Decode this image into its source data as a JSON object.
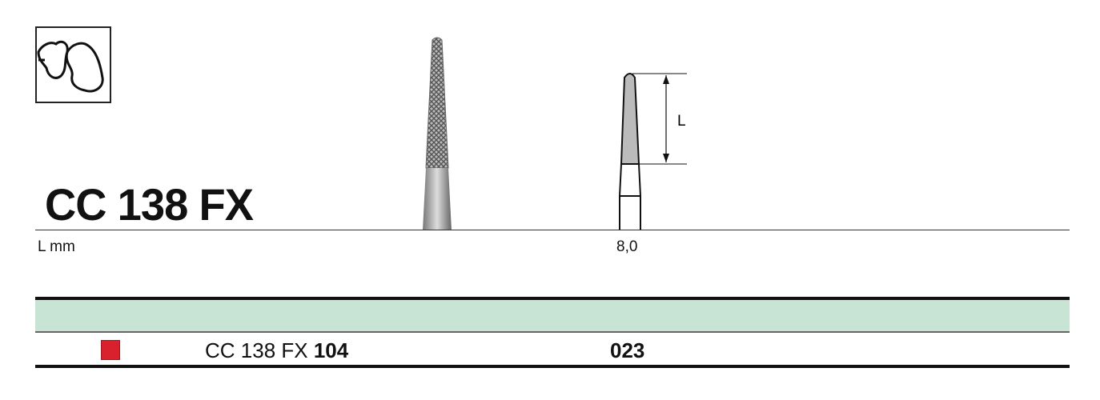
{
  "product": {
    "title": "CC 138 FX",
    "application_icon": "tooth-crown-icon"
  },
  "dimensions": {
    "label": "L mm",
    "diagram_label": "L",
    "value": "8,0"
  },
  "table": {
    "header_color": "#c8e4d4",
    "rows": [
      {
        "color_code": "#d9212e",
        "code_prefix": "CC 138 FX",
        "code_size": "104",
        "diameter": "023"
      }
    ]
  }
}
